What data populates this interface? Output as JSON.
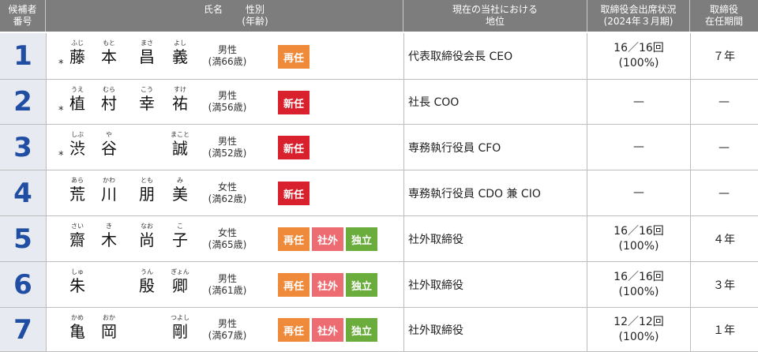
{
  "header": {
    "number": [
      "候補者",
      "番号"
    ],
    "name": "氏名",
    "gender": [
      "性別",
      "(年齢)"
    ],
    "position": [
      "現在の当社における",
      "地位"
    ],
    "attendance": [
      "取締役会出席状況",
      "(2024年３月期)"
    ],
    "tenure": [
      "取締役",
      "在任期間"
    ]
  },
  "badge_colors": {
    "再任": "#ee8a3a",
    "新任": "#d9212e",
    "社外": "#ec6c72",
    "独立": "#6aad3c"
  },
  "rows": [
    {
      "no": "1",
      "mark": "*",
      "chars": [
        [
          "ふじ",
          "藤"
        ],
        [
          "もと",
          "本"
        ],
        [
          "まさ",
          "昌"
        ],
        [
          "よし",
          "義"
        ]
      ],
      "gender": "男性",
      "age": "(満66歳)",
      "badges": [
        "再任"
      ],
      "position": "代表取締役会長 CEO",
      "attendance": [
        "16／16回",
        "(100%)"
      ],
      "tenure": "７年"
    },
    {
      "no": "2",
      "mark": "*",
      "chars": [
        [
          "うえ",
          "植"
        ],
        [
          "むら",
          "村"
        ],
        [
          "こう",
          "幸"
        ],
        [
          "すけ",
          "祐"
        ]
      ],
      "gender": "男性",
      "age": "(満56歳)",
      "badges": [
        "新任"
      ],
      "position": "社長 COO",
      "attendance": [
        "—"
      ],
      "tenure": "—"
    },
    {
      "no": "3",
      "mark": "*",
      "chars": [
        [
          "しぶ",
          "渋"
        ],
        [
          "や",
          "谷"
        ],
        [
          "",
          ""
        ],
        [
          "まこと",
          "誠"
        ]
      ],
      "gender": "男性",
      "age": "(満52歳)",
      "badges": [
        "新任"
      ],
      "position": "専務執行役員 CFO",
      "attendance": [
        "—"
      ],
      "tenure": "—"
    },
    {
      "no": "4",
      "mark": "",
      "chars": [
        [
          "あら",
          "荒"
        ],
        [
          "かわ",
          "川"
        ],
        [
          "とも",
          "朋"
        ],
        [
          "み",
          "美"
        ]
      ],
      "gender": "女性",
      "age": "(満62歳)",
      "badges": [
        "新任"
      ],
      "position": "専務執行役員 CDO 兼 CIO",
      "attendance": [
        "—"
      ],
      "tenure": "—"
    },
    {
      "no": "5",
      "mark": "",
      "chars": [
        [
          "さい",
          "齋"
        ],
        [
          "き",
          "木"
        ],
        [
          "なお",
          "尚"
        ],
        [
          "こ",
          "子"
        ]
      ],
      "gender": "女性",
      "age": "(満65歳)",
      "badges": [
        "再任",
        "社外",
        "独立"
      ],
      "position": "社外取締役",
      "attendance": [
        "16／16回",
        "(100%)"
      ],
      "tenure": "４年"
    },
    {
      "no": "6",
      "mark": "",
      "chars": [
        [
          "しゅ",
          "朱"
        ],
        [
          "",
          ""
        ],
        [
          "うん",
          "殷"
        ],
        [
          "ぎょん",
          "卿"
        ]
      ],
      "gender": "男性",
      "age": "(満61歳)",
      "badges": [
        "再任",
        "社外",
        "独立"
      ],
      "position": "社外取締役",
      "attendance": [
        "16／16回",
        "(100%)"
      ],
      "tenure": "３年"
    },
    {
      "no": "7",
      "mark": "",
      "chars": [
        [
          "かめ",
          "亀"
        ],
        [
          "おか",
          "岡"
        ],
        [
          "",
          ""
        ],
        [
          "つよし",
          "剛"
        ]
      ],
      "gender": "男性",
      "age": "(満67歳)",
      "badges": [
        "再任",
        "社外",
        "独立"
      ],
      "position": "社外取締役",
      "attendance": [
        "12／12回",
        "(100%)"
      ],
      "tenure": "１年"
    }
  ]
}
